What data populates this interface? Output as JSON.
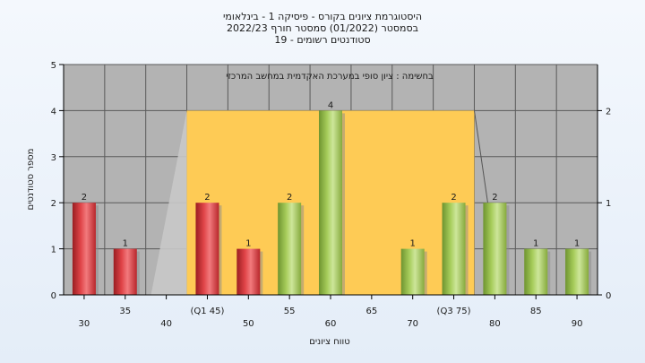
{
  "chart_data": {
    "type": "bar",
    "title_lines": [
      "היסטוגרמת ציונים בקורס - פיסיקה 1 - בינלאומי",
      "בסמסטר  (01/2022)  סמסטר חורף 2022/23",
      "סטודנטים רשומים - 19"
    ],
    "annotation": "בחשימה : ציון סופי במערכת האקדמית במחשב המרכזי",
    "xlabel": "טווח ציונים",
    "ylabel": "מספר סטודנטים",
    "ylim": [
      0,
      5
    ],
    "yticks": [
      "0",
      "1",
      "2",
      "3",
      "4",
      "5"
    ],
    "y2lim": [
      0,
      2.5
    ],
    "y2ticks": [
      "0",
      "1",
      "2"
    ],
    "x_ticks": [
      {
        "x": 30,
        "label": "30"
      },
      {
        "x": 35,
        "label": "35"
      },
      {
        "x": 40,
        "label": "40"
      },
      {
        "x": 45,
        "label": "(Q1 45)"
      },
      {
        "x": 50,
        "label": "50"
      },
      {
        "x": 55,
        "label": "55"
      },
      {
        "x": 60,
        "label": "60"
      },
      {
        "x": 65,
        "label": "65"
      },
      {
        "x": 70,
        "label": "70"
      },
      {
        "x": 75,
        "label": "(Q3 75)"
      },
      {
        "x": 80,
        "label": "80"
      },
      {
        "x": 85,
        "label": "85"
      },
      {
        "x": 90,
        "label": "90"
      }
    ],
    "bars": [
      {
        "x": 30,
        "value": 2,
        "color": "red"
      },
      {
        "x": 35,
        "value": 1,
        "color": "red"
      },
      {
        "x": 45,
        "value": 2,
        "color": "red"
      },
      {
        "x": 50,
        "value": 1,
        "color": "red"
      },
      {
        "x": 55,
        "value": 2,
        "color": "green"
      },
      {
        "x": 60,
        "value": 4,
        "color": "green"
      },
      {
        "x": 70,
        "value": 1,
        "color": "green"
      },
      {
        "x": 75,
        "value": 2,
        "color": "green"
      },
      {
        "x": 80,
        "value": 2,
        "color": "green"
      },
      {
        "x": 85,
        "value": 1,
        "color": "green"
      },
      {
        "x": 90,
        "value": 1,
        "color": "green"
      }
    ],
    "box": {
      "q1": 45,
      "q3": 75,
      "top_value": 2
    },
    "grid": true,
    "colors": {
      "plot_bg": "#b3b3b3",
      "box_fill": "#fecb55",
      "shadow": "#c8c8c8",
      "red": "#d8343a",
      "green": "#9cc24f"
    }
  }
}
